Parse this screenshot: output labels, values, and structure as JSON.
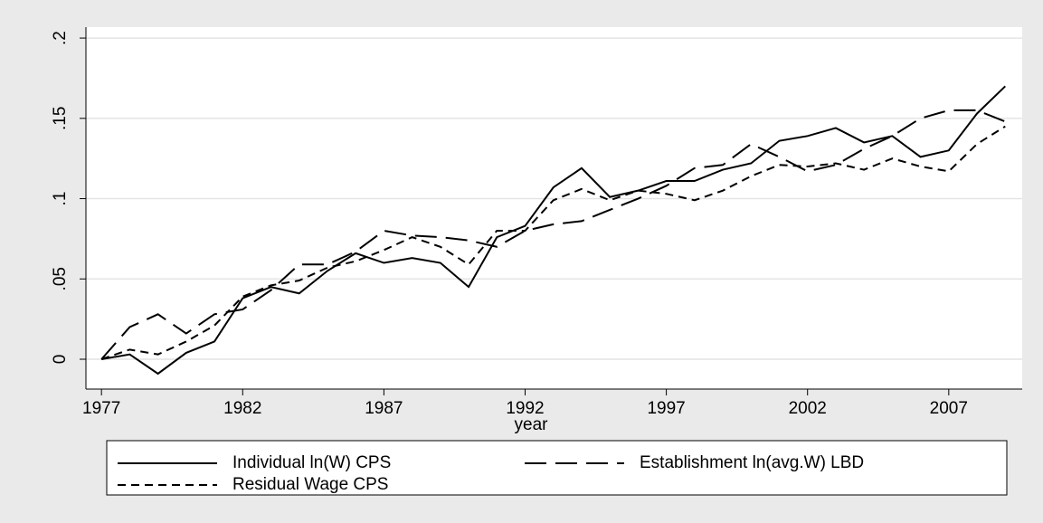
{
  "chart_data": {
    "type": "line",
    "x_label": "year",
    "x": [
      1977,
      1978,
      1979,
      1980,
      1981,
      1982,
      1983,
      1984,
      1985,
      1986,
      1987,
      1988,
      1989,
      1990,
      1991,
      1992,
      1993,
      1994,
      1995,
      1996,
      1997,
      1998,
      1999,
      2000,
      2001,
      2002,
      2003,
      2004,
      2005,
      2006,
      2007,
      2008,
      2009
    ],
    "series": [
      {
        "name": "Individual ln(W) CPS",
        "color": "#000000",
        "dash": "solid",
        "values": [
          0,
          0.003,
          -0.009,
          0.004,
          0.011,
          0.038,
          0.045,
          0.041,
          0.055,
          0.066,
          0.06,
          0.063,
          0.06,
          0.045,
          0.076,
          0.083,
          0.107,
          0.119,
          0.101,
          0.105,
          0.111,
          0.111,
          0.118,
          0.122,
          0.136,
          0.139,
          0.144,
          0.135,
          0.139,
          0.126,
          0.13,
          0.153,
          0.17
        ]
      },
      {
        "name": "Establishment ln(avg.W) LBD",
        "color": "#000000",
        "dash": "long",
        "values": [
          0,
          0.02,
          0.028,
          0.016,
          0.028,
          0.031,
          0.043,
          0.059,
          0.059,
          0.067,
          0.08,
          0.077,
          0.076,
          0.074,
          0.07,
          0.08,
          0.084,
          0.086,
          0.093,
          0.1,
          0.108,
          0.119,
          0.121,
          0.134,
          0.126,
          0.117,
          0.121,
          0.131,
          0.139,
          0.15,
          0.155,
          0.155,
          0.148
        ]
      },
      {
        "name": "Residual Wage CPS",
        "color": "#000000",
        "dash": "short",
        "values": [
          0,
          0.006,
          0.003,
          0.011,
          0.021,
          0.039,
          0.046,
          0.049,
          0.057,
          0.061,
          0.068,
          0.076,
          0.07,
          0.059,
          0.08,
          0.08,
          0.099,
          0.106,
          0.099,
          0.105,
          0.103,
          0.099,
          0.105,
          0.114,
          0.121,
          0.12,
          0.122,
          0.118,
          0.125,
          0.12,
          0.117,
          0.134,
          0.145
        ]
      }
    ],
    "xlim": [
      1976.45,
      2009.6
    ],
    "xticks": [
      1977,
      1982,
      1987,
      1992,
      1997,
      2002,
      2007
    ],
    "ylim": [
      -0.0186,
      0.2068
    ],
    "yticks": [
      0,
      {
        "value": 0.05,
        "label": ".05"
      },
      {
        "value": 0.1,
        "label": ".1"
      },
      {
        "value": 0.15,
        "label": ".15"
      },
      {
        "value": 0.2,
        "label": ".2"
      }
    ],
    "grid": true,
    "legend_position": "bottom"
  }
}
